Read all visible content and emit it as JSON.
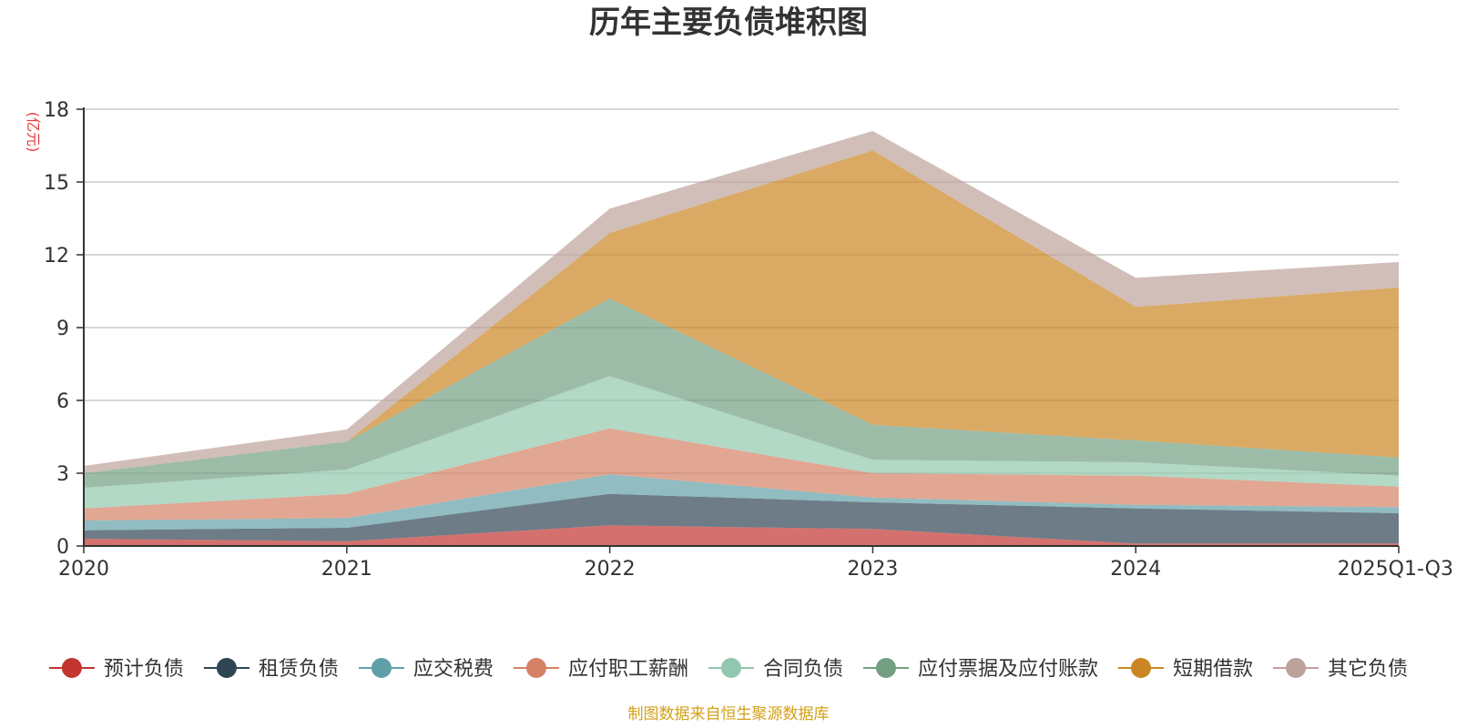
{
  "chart_data": {
    "type": "area",
    "stacked": true,
    "title": "历年主要负债堆积图",
    "unit_label": "(亿元)",
    "categories": [
      "2020",
      "2021",
      "2022",
      "2023",
      "2024",
      "2025Q1-Q3"
    ],
    "ylim": [
      0,
      18
    ],
    "yticks": [
      0,
      3,
      6,
      9,
      12,
      15,
      18
    ],
    "grid": true,
    "legend_position": "bottom",
    "series": [
      {
        "name": "预计负债",
        "color": "#c23531",
        "values": [
          0.3,
          0.2,
          0.85,
          0.7,
          0.1,
          0.1
        ]
      },
      {
        "name": "租赁负债",
        "color": "#2f4554",
        "values": [
          0.35,
          0.55,
          1.3,
          1.1,
          1.45,
          1.25
        ]
      },
      {
        "name": "应交税费",
        "color": "#61a0a8",
        "values": [
          0.4,
          0.4,
          0.8,
          0.2,
          0.15,
          0.25
        ]
      },
      {
        "name": "应付职工薪酬",
        "color": "#d48265",
        "values": [
          0.5,
          1.0,
          1.9,
          1.0,
          1.2,
          0.85
        ]
      },
      {
        "name": "合同负债",
        "color": "#91c7ae",
        "values": [
          0.85,
          1.0,
          2.15,
          0.55,
          0.55,
          0.45
        ]
      },
      {
        "name": "应付票据及应付账款",
        "color": "#749f83",
        "values": [
          0.6,
          1.15,
          3.2,
          1.45,
          0.9,
          0.75
        ]
      },
      {
        "name": "短期借款",
        "color": "#ca8622",
        "values": [
          0.0,
          0.0,
          2.7,
          11.3,
          5.5,
          7.0
        ]
      },
      {
        "name": "其它负债",
        "color": "#bda29a",
        "values": [
          0.3,
          0.5,
          1.0,
          0.8,
          1.2,
          1.05
        ]
      }
    ]
  },
  "footer": {
    "source": "制图数据来自恒生聚源数据库"
  }
}
